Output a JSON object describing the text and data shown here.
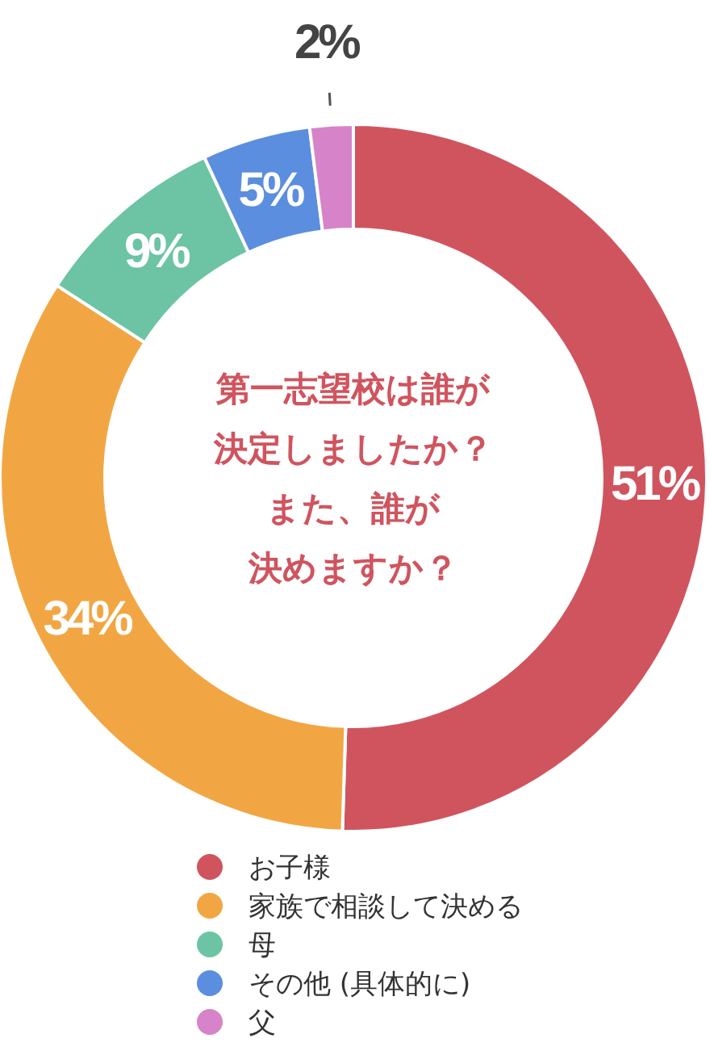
{
  "chart_data": {
    "type": "donut",
    "title": "第一志望校は誰が決定しましたか？また、誰が決めますか？",
    "categories": [
      "お子様",
      "家族で相談して決める",
      "母",
      "その他 (具体的に)",
      "父"
    ],
    "values": [
      51,
      34,
      9,
      5,
      2
    ],
    "colors": [
      "#d0545e",
      "#f2a643",
      "#6cc4a5",
      "#5b8ede",
      "#d683c9"
    ],
    "value_labels": [
      "51%",
      "34%",
      "9%",
      "5%",
      "2%"
    ],
    "legend": "bottom"
  }
}
